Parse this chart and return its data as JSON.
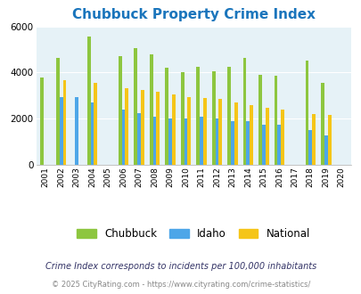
{
  "title": "Chubbuck Property Crime Index",
  "years": [
    2001,
    2002,
    2003,
    2004,
    2005,
    2006,
    2007,
    2008,
    2009,
    2010,
    2011,
    2012,
    2013,
    2014,
    2015,
    2016,
    2017,
    2018,
    2019,
    2020
  ],
  "chubbuck": [
    3800,
    4650,
    null,
    5550,
    null,
    4700,
    5050,
    4800,
    4200,
    4000,
    4250,
    4050,
    4250,
    4650,
    3900,
    3850,
    null,
    4500,
    3550,
    null
  ],
  "idaho": [
    null,
    2950,
    2950,
    2700,
    null,
    2400,
    2250,
    2100,
    2000,
    2000,
    2100,
    2000,
    1900,
    1900,
    1750,
    1750,
    null,
    1500,
    1250,
    null
  ],
  "national": [
    null,
    3650,
    null,
    3550,
    null,
    3300,
    3250,
    3150,
    3050,
    2950,
    2900,
    2850,
    2700,
    2600,
    2450,
    2400,
    null,
    2200,
    2150,
    null
  ],
  "color_chubbuck": "#8dc63f",
  "color_idaho": "#4da6e8",
  "color_national": "#f5c518",
  "bg_color": "#e6f2f7",
  "title_color": "#1a75bc",
  "ylim": [
    0,
    6000
  ],
  "yticks": [
    0,
    2000,
    4000,
    6000
  ],
  "footnote1": "Crime Index corresponds to incidents per 100,000 inhabitants",
  "footnote2": "© 2025 CityRating.com - https://www.cityrating.com/crime-statistics/"
}
